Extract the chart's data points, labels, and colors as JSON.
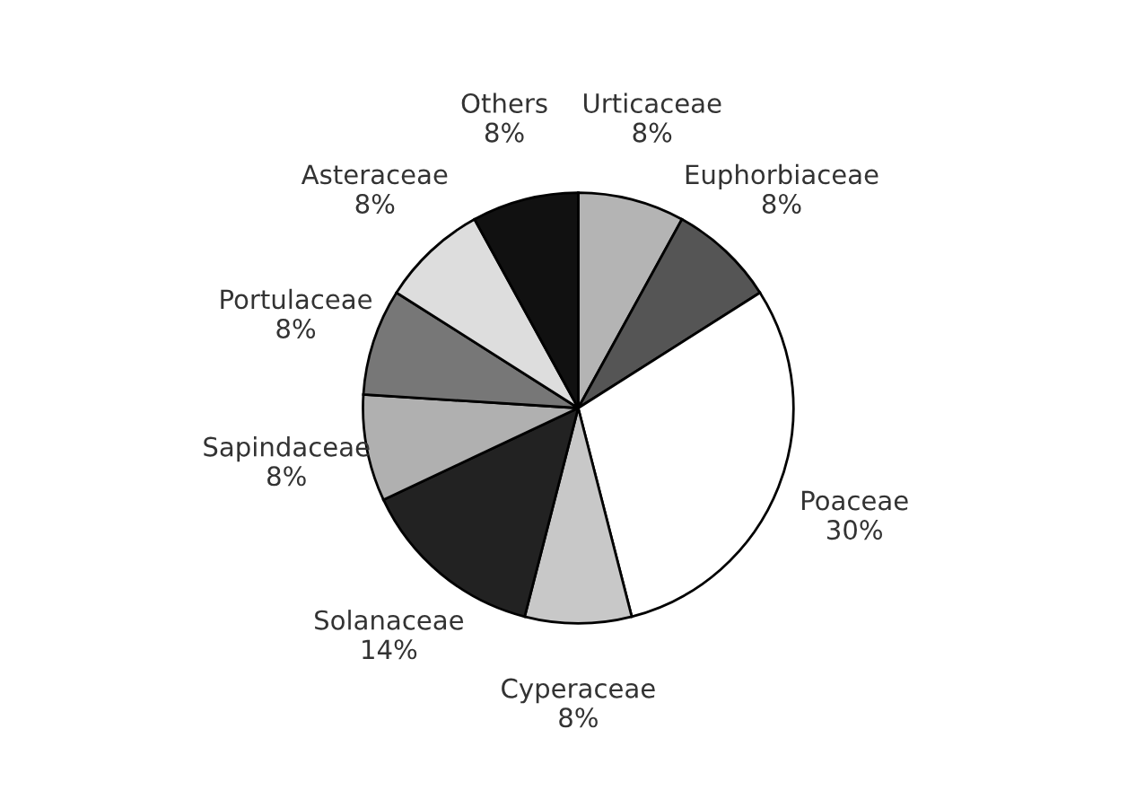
{
  "chart_data": {
    "type": "pie",
    "categories": [
      "Urticaceae",
      "Euphorbiaceae",
      "Poaceae",
      "Cyperaceae",
      "Solanaceae",
      "Sapindaceae",
      "Portulaceae",
      "Asteraceae",
      "Others"
    ],
    "values": [
      8,
      8,
      30,
      8,
      14,
      8,
      8,
      8,
      8
    ],
    "value_labels": [
      "8%",
      "8%",
      "30%",
      "8%",
      "14%",
      "8%",
      "8%",
      "8%",
      "8%"
    ],
    "colors": [
      "#b4b4b4",
      "#555555",
      "#ffffff",
      "#c8c8c8",
      "#222222",
      "#b0b0b0",
      "#777777",
      "#dddddd",
      "#111111"
    ]
  }
}
